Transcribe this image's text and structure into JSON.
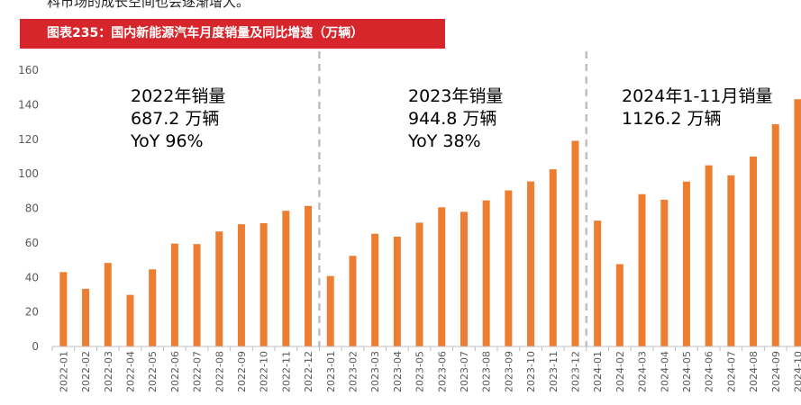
{
  "header": {
    "top_text": "科市场的成长空间也会逐渐增大。",
    "banner_title": "图表235：国内新能源汽车月度销量及同比增速（万辆）"
  },
  "colors": {
    "bar": "#ed7d31",
    "banner": "#d7262b",
    "divider": "#bfbfbf"
  },
  "chart_data": {
    "type": "bar",
    "title": "图表235：国内新能源汽车月度销量及同比增速（万辆）",
    "xlabel": "",
    "ylabel": "",
    "ylim": [
      0,
      160
    ],
    "yticks": [
      0,
      20,
      40,
      60,
      80,
      100,
      120,
      140,
      160
    ],
    "grid": false,
    "categories": [
      "2022-01",
      "2022-02",
      "2022-03",
      "2022-04",
      "2022-05",
      "2022-06",
      "2022-07",
      "2022-08",
      "2022-09",
      "2022-10",
      "2022-11",
      "2022-12",
      "2023-01",
      "2023-02",
      "2023-03",
      "2023-04",
      "2023-05",
      "2023-06",
      "2023-07",
      "2023-08",
      "2023-09",
      "2023-10",
      "2023-11",
      "2023-12",
      "2024-01",
      "2024-02",
      "2024-03",
      "2024-04",
      "2024-05",
      "2024-06",
      "2024-07",
      "2024-08",
      "2024-09",
      "2024-10"
    ],
    "values": [
      43.1,
      33.4,
      48.4,
      29.9,
      44.7,
      59.6,
      59.3,
      66.6,
      70.8,
      71.4,
      78.6,
      81.4,
      40.8,
      52.5,
      65.3,
      63.6,
      71.7,
      80.6,
      78.0,
      84.6,
      90.4,
      95.6,
      102.6,
      119.1,
      72.9,
      47.7,
      88.2,
      85.0,
      95.5,
      104.9,
      99.1,
      110.0,
      128.7,
      143.2
    ],
    "dividers_after": [
      "2022-12",
      "2023-12"
    ],
    "annotations": [
      {
        "lines": [
          "2022年销量",
          "687.2 万辆",
          "YoY 96%"
        ]
      },
      {
        "lines": [
          "2023年销量",
          "944.8 万辆",
          "YoY 38%"
        ]
      },
      {
        "lines": [
          "2024年1-11月销量",
          "1126.2 万辆"
        ]
      }
    ]
  }
}
